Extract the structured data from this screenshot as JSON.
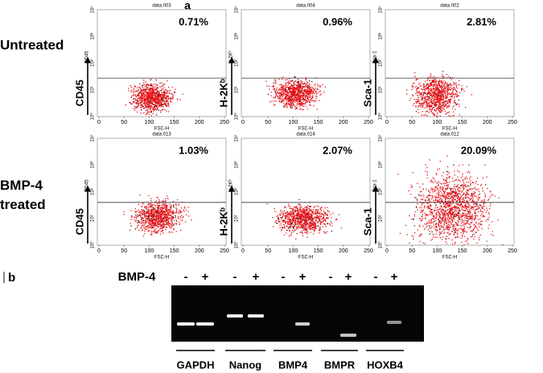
{
  "panel_a": {
    "label": "a",
    "x_axis_label": "FSC-H",
    "x_ticks": [
      "0",
      "50",
      "100",
      "150",
      "200",
      "250"
    ],
    "y_ticks": [
      "10⁰",
      "10¹",
      "10²",
      "10³",
      "10⁴"
    ],
    "rows": [
      {
        "label": "Untreated",
        "plots": [
          {
            "title": "data.003",
            "marker": "CD45",
            "percent": "0.71%"
          },
          {
            "title": "data.004",
            "marker": "H-2Kᵇ",
            "percent": "0.96%"
          },
          {
            "title": "data.002",
            "marker": "Sca-1",
            "percent": "2.81%"
          }
        ]
      },
      {
        "label": "BMP-4 treated",
        "plots": [
          {
            "title": "data.013",
            "marker": "CD45",
            "percent": "1.03%"
          },
          {
            "title": "data.014",
            "marker": "H-2Kᵇ",
            "percent": "2.07%"
          },
          {
            "title": "data.012",
            "marker": "Sca-1",
            "percent": "20.09%"
          }
        ]
      }
    ]
  },
  "panel_b": {
    "label": "b",
    "treatment": "BMP-4",
    "genes": [
      {
        "name": "GAPDH",
        "lanes": [
          "-",
          "+"
        ]
      },
      {
        "name": "Nanog",
        "lanes": [
          "-",
          "+"
        ]
      },
      {
        "name": "BMP4",
        "lanes": [
          "-",
          "+"
        ]
      },
      {
        "name": "BMPR",
        "lanes": [
          "-",
          "+"
        ]
      },
      {
        "name": "HOXB4",
        "lanes": [
          "-",
          "+"
        ]
      }
    ]
  }
}
